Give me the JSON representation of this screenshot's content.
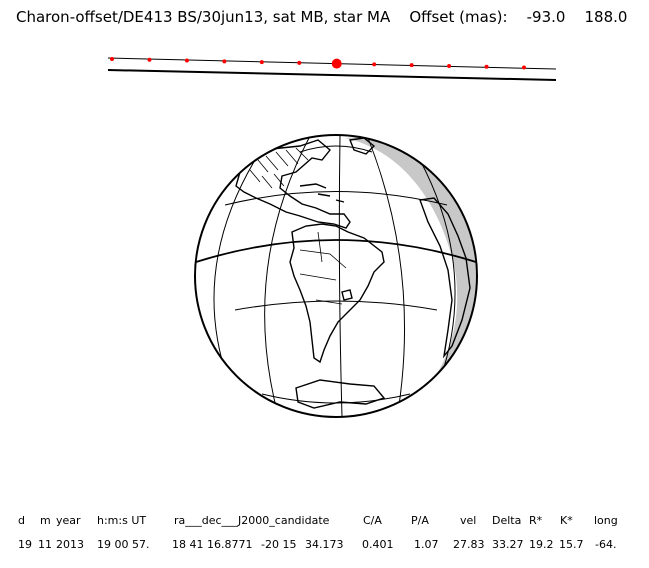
{
  "title": {
    "text": "Charon-offset/DE413 BS/30jun13, sat MB, star MA",
    "offset_label": "Offset (mas):",
    "offset_values": [
      "-93.0",
      "188.0"
    ]
  },
  "track": {
    "point_count": 12,
    "highlight_index": 6,
    "point_color": "#ff0000",
    "line_color": "#000000"
  },
  "globe": {
    "sun_lon": -64,
    "center_lat": -20,
    "shadow_color": "#c8c8c8",
    "outline_color": "#000000"
  },
  "table": {
    "headers": [
      "d",
      "m",
      "year",
      "h:m:s UT",
      "ra___dec___J2000_candidate",
      "C/A",
      "P/A",
      "vel",
      "Delta",
      "R*",
      "K*",
      "long"
    ],
    "values": [
      "19",
      "11",
      "2013",
      "19 00 57.",
      "18 41 16.8771",
      "-20 15",
      "34.173",
      "0.401",
      "1.07",
      "27.83",
      "33.27",
      "19.2",
      "15.7",
      "-64."
    ]
  }
}
